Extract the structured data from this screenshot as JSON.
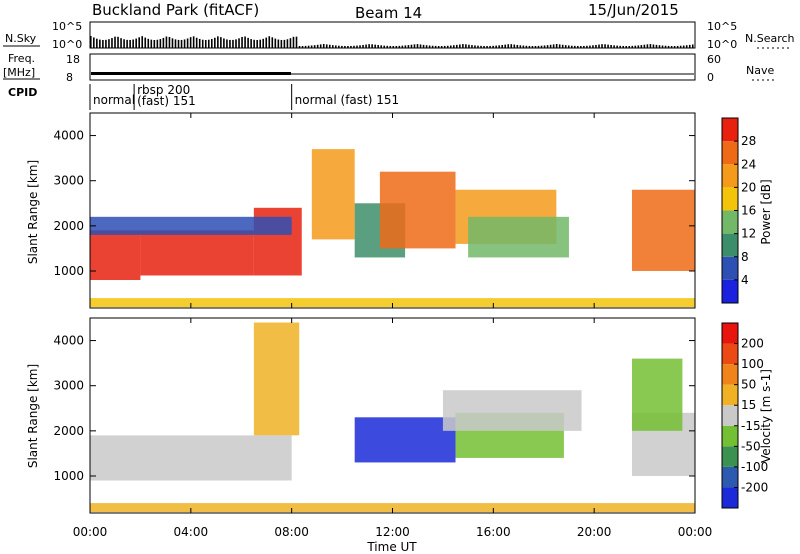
{
  "header": {
    "site": "Buckland Park (fitACF)",
    "beam": "Beam 14",
    "date": "15/Jun/2015"
  },
  "noise_panel": {
    "left_label": "N.Sky",
    "right_label": "N.Search",
    "left_ticks": [
      "10^5",
      "10^0"
    ],
    "right_ticks": [
      "10^5",
      "10^0"
    ]
  },
  "freq_panel": {
    "left_label_line1": "Freq.",
    "left_label_line2": "[MHz]",
    "left_ticks": [
      "18",
      "8"
    ],
    "right_label": "Nave",
    "right_ticks": [
      "60",
      "0"
    ]
  },
  "cpid": {
    "label": "CPID",
    "segments": [
      {
        "start_hour": 0.0,
        "end_hour": 1.75,
        "text": [
          "normal"
        ]
      },
      {
        "start_hour": 1.75,
        "end_hour": 8.0,
        "text": [
          "rbsp 200",
          "(fast) 151"
        ]
      },
      {
        "start_hour": 8.0,
        "end_hour": 24.0,
        "text": [
          "normal (fast) 151"
        ]
      }
    ]
  },
  "x_axis": {
    "label": "Time UT",
    "ticks": [
      "00:00",
      "04:00",
      "08:00",
      "12:00",
      "16:00",
      "20:00",
      "00:00"
    ]
  },
  "chart_data": [
    {
      "type": "heatmap",
      "panel": "power",
      "ylabel": "Slant Range [km]",
      "yticks": [
        "1000",
        "2000",
        "3000",
        "4000"
      ],
      "ylim": [
        180,
        4500
      ],
      "xlim_hours": [
        0,
        24
      ],
      "colorbar": {
        "label": "Power [dB]",
        "ticks": [
          "4",
          "8",
          "12",
          "16",
          "20",
          "24",
          "28"
        ],
        "colors": [
          "#1a22e0",
          "#2e4fb4",
          "#3c8e6a",
          "#72b868",
          "#f4c40a",
          "#f59a1a",
          "#ef6a16",
          "#e8220f"
        ]
      },
      "echo_regions": [
        {
          "t0": 0.0,
          "t1": 2.0,
          "r0": 800,
          "r1": 1900,
          "level": 7
        },
        {
          "t0": 2.0,
          "t1": 6.5,
          "r0": 900,
          "r1": 1900,
          "level": 7
        },
        {
          "t0": 6.5,
          "t1": 8.4,
          "r0": 900,
          "r1": 2400,
          "level": 7
        },
        {
          "t0": 0.0,
          "t1": 8.0,
          "r0": 1800,
          "r1": 2200,
          "level": 1
        },
        {
          "t0": 8.8,
          "t1": 10.5,
          "r0": 1700,
          "r1": 3700,
          "level": 5
        },
        {
          "t0": 10.5,
          "t1": 12.5,
          "r0": 1300,
          "r1": 2500,
          "level": 2
        },
        {
          "t0": 11.5,
          "t1": 14.5,
          "r0": 1500,
          "r1": 3200,
          "level": 6
        },
        {
          "t0": 14.5,
          "t1": 18.5,
          "r0": 1600,
          "r1": 2800,
          "level": 5
        },
        {
          "t0": 15.0,
          "t1": 19.0,
          "r0": 1300,
          "r1": 2200,
          "level": 3
        },
        {
          "t0": 21.5,
          "t1": 24.0,
          "r0": 1000,
          "r1": 2800,
          "level": 6
        },
        {
          "t0": 0.0,
          "t1": 24.0,
          "r0": 200,
          "r1": 400,
          "level": 4
        }
      ]
    },
    {
      "type": "heatmap",
      "panel": "velocity",
      "ylabel": "Slant Range [km]",
      "yticks": [
        "1000",
        "2000",
        "3000",
        "4000"
      ],
      "ylim": [
        180,
        4500
      ],
      "xlim_hours": [
        0,
        24
      ],
      "colorbar": {
        "label": "Velocity [m s-1]",
        "ticks": [
          "200",
          "100",
          "50",
          "15",
          "-15",
          "-50",
          "-100",
          "-200"
        ],
        "colors": [
          "#1a2ad8",
          "#2c5ab0",
          "#3a9150",
          "#74c034",
          "#c9c9c9",
          "#f0b224",
          "#f0841a",
          "#ec4a14",
          "#e8140e"
        ]
      },
      "echo_regions": [
        {
          "t0": 0.0,
          "t1": 8.0,
          "r0": 900,
          "r1": 1900,
          "level": 4
        },
        {
          "t0": 6.5,
          "t1": 8.3,
          "r0": 1900,
          "r1": 4400,
          "level": 5
        },
        {
          "t0": 10.5,
          "t1": 14.5,
          "r0": 1300,
          "r1": 2300,
          "level": 0
        },
        {
          "t0": 14.5,
          "t1": 18.8,
          "r0": 1400,
          "r1": 2400,
          "level": 3
        },
        {
          "t0": 14.0,
          "t1": 19.5,
          "r0": 2000,
          "r1": 2900,
          "level": 4
        },
        {
          "t0": 21.5,
          "t1": 24.0,
          "r0": 1000,
          "r1": 2400,
          "level": 4
        },
        {
          "t0": 21.5,
          "t1": 23.5,
          "r0": 2000,
          "r1": 3600,
          "level": 3
        },
        {
          "t0": 0.0,
          "t1": 24.0,
          "r0": 200,
          "r1": 400,
          "level": 5
        }
      ]
    }
  ]
}
